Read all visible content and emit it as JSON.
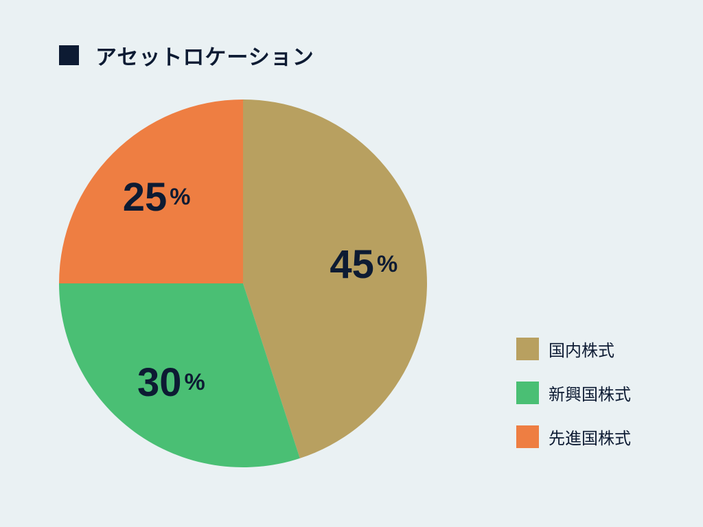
{
  "title": "アセットロケーション",
  "chart_data": {
    "type": "pie",
    "start_angle_deg": 0,
    "direction": "clockwise",
    "slices": [
      {
        "label": "国内株式",
        "value": 45,
        "display": "45",
        "unit": "%",
        "color": "#b8a060"
      },
      {
        "label": "新興国株式",
        "value": 30,
        "display": "30",
        "unit": "%",
        "color": "#4abf74"
      },
      {
        "label": "先進国株式",
        "value": 25,
        "display": "25",
        "unit": "%",
        "color": "#ee7e42"
      }
    ],
    "legend_placement": "bottom-right"
  }
}
